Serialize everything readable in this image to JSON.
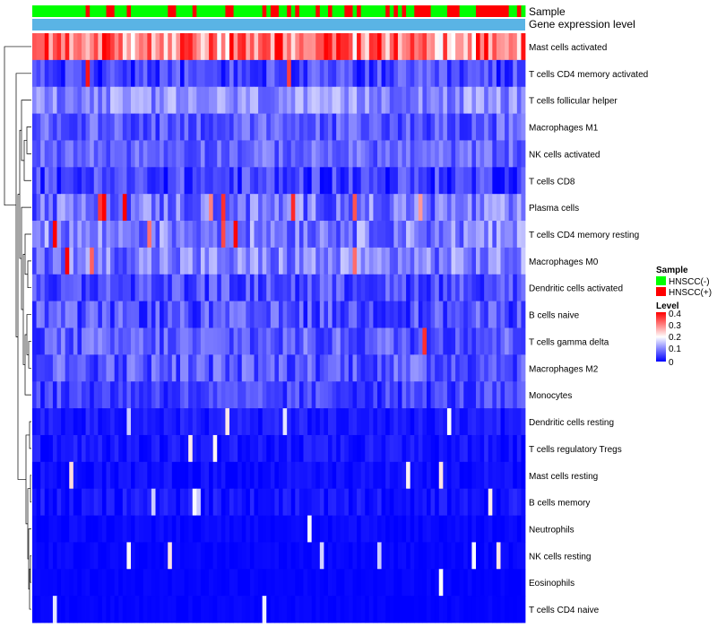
{
  "chart_data": {
    "type": "heatmap",
    "annotation_tracks": [
      "Sample",
      "Gene expression level"
    ],
    "rows": [
      {
        "label": "Mast cells activated",
        "mean": 0.28,
        "spread": 0.09,
        "hot_prob": 0.5
      },
      {
        "label": "T cells CD4 memory activated",
        "mean": 0.05,
        "spread": 0.05,
        "hot_prob": 0.01
      },
      {
        "label": "T cells follicular helper",
        "mean": 0.11,
        "spread": 0.05,
        "hot_prob": 0.0
      },
      {
        "label": "Macrophages M1",
        "mean": 0.07,
        "spread": 0.045,
        "hot_prob": 0.0
      },
      {
        "label": "NK cells activated",
        "mean": 0.08,
        "spread": 0.04,
        "hot_prob": 0.0
      },
      {
        "label": "T cells CD8",
        "mean": 0.05,
        "spread": 0.05,
        "hot_prob": 0.0
      },
      {
        "label": "Plasma cells",
        "mean": 0.09,
        "spread": 0.06,
        "hot_prob": 0.04
      },
      {
        "label": "T cells CD4 memory resting",
        "mean": 0.1,
        "spread": 0.06,
        "hot_prob": 0.02
      },
      {
        "label": "Macrophages M0",
        "mean": 0.1,
        "spread": 0.06,
        "hot_prob": 0.02
      },
      {
        "label": "Dendritic cells activated",
        "mean": 0.06,
        "spread": 0.045,
        "hot_prob": 0.0
      },
      {
        "label": "B cells naive",
        "mean": 0.06,
        "spread": 0.05,
        "hot_prob": 0.0
      },
      {
        "label": "T cells gamma delta",
        "mean": 0.07,
        "spread": 0.05,
        "hot_prob": 0.01
      },
      {
        "label": "Macrophages M2",
        "mean": 0.07,
        "spread": 0.05,
        "hot_prob": 0.0
      },
      {
        "label": "Monocytes",
        "mean": 0.05,
        "spread": 0.04,
        "hot_prob": 0.0
      },
      {
        "label": "Dendritic cells resting",
        "mean": 0.02,
        "spread": 0.02,
        "hot_prob": 0.0
      },
      {
        "label": "T cells regulatory  Tregs",
        "mean": 0.015,
        "spread": 0.02,
        "hot_prob": 0.0
      },
      {
        "label": "Mast cells resting",
        "mean": 0.01,
        "spread": 0.015,
        "hot_prob": 0.0
      },
      {
        "label": "B cells memory",
        "mean": 0.015,
        "spread": 0.02,
        "hot_prob": 0.0
      },
      {
        "label": "Neutrophils",
        "mean": 0.005,
        "spread": 0.01,
        "hot_prob": 0.0
      },
      {
        "label": "NK cells resting",
        "mean": 0.004,
        "spread": 0.008,
        "hot_prob": 0.0
      },
      {
        "label": "Eosinophils",
        "mean": 0.003,
        "spread": 0.006,
        "hot_prob": 0.0
      },
      {
        "label": "T cells CD4 naive",
        "mean": 0.003,
        "spread": 0.006,
        "hot_prob": 0.0
      }
    ],
    "samples": {
      "count": 120,
      "groups": [
        "HNSCC(-)",
        "HNSCC(+)"
      ],
      "positive_fraction_start": 0.1,
      "positive_fraction_end": 0.6
    },
    "legend": {
      "sample_title": "Sample",
      "sample_entries": [
        {
          "label": "HNSCC(-)",
          "color": "#00ff00"
        },
        {
          "label": "HNSCC(+)",
          "color": "#ff0000"
        }
      ],
      "level_title": "Level",
      "level_ticks": [
        "0.4",
        "0.3",
        "0.2",
        "0.1",
        "0"
      ],
      "level_range": [
        0,
        0.4
      ]
    },
    "colors": {
      "low": "#0000ff",
      "mid": "#ffffff",
      "high": "#ff0000",
      "gene_level_track": "#5ab4e5",
      "negative": "#00ff00",
      "positive": "#ff0000"
    }
  }
}
